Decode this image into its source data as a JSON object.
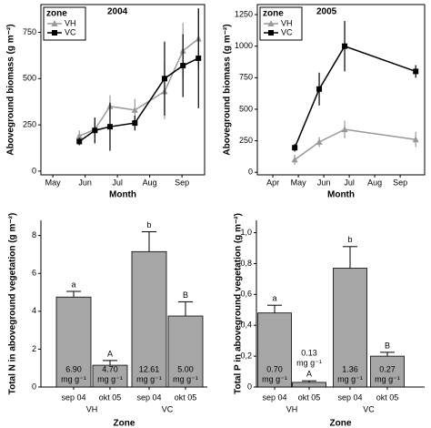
{
  "chart_data": [
    {
      "type": "line",
      "title": "2004",
      "xlabel": "Month",
      "ylabel": "Aboveground biomass (g m⁻²)",
      "legend_title": "zone",
      "legend": "top-left",
      "x": [
        5.82,
        6.3,
        6.77,
        7.54,
        8.46,
        9.03,
        9.51
      ],
      "xlim": [
        4.63,
        9.7
      ],
      "xticks": [
        {
          "value": 5,
          "label": "May"
        },
        {
          "value": 6,
          "label": "Jun"
        },
        {
          "value": 7,
          "label": "Jul"
        },
        {
          "value": 8,
          "label": "Aug"
        },
        {
          "value": 9,
          "label": "Sep"
        }
      ],
      "ylim": [
        -20,
        900
      ],
      "yticks": [
        0,
        250,
        500,
        750
      ],
      "series": [
        {
          "name": "VH",
          "color": "#999999",
          "marker": "triangle",
          "values": [
            190,
            225,
            350,
            330,
            430,
            650,
            715
          ],
          "errors": [
            30,
            40,
            60,
            60,
            150,
            150,
            160
          ]
        },
        {
          "name": "VC",
          "color": "#000000",
          "marker": "square",
          "values": [
            160,
            220,
            240,
            260,
            500,
            570,
            610
          ],
          "errors": [
            20,
            70,
            130,
            40,
            200,
            170,
            270
          ]
        }
      ]
    },
    {
      "type": "line",
      "title": "2005",
      "xlabel": "Month",
      "ylabel": "Aboveground biomass (g m⁻²)",
      "legend_title": "zone",
      "legend": "top-left",
      "x": [
        4.86,
        5.82,
        6.82,
        9.61
      ],
      "xlim": [
        3.39,
        9.96
      ],
      "xticks": [
        {
          "value": 4,
          "label": "Apr"
        },
        {
          "value": 5,
          "label": "May"
        },
        {
          "value": 6,
          "label": "Jun"
        },
        {
          "value": 7,
          "label": "Jul"
        },
        {
          "value": 8,
          "label": "Aug"
        },
        {
          "value": 9,
          "label": "Sep"
        }
      ],
      "ylim": [
        -20,
        1330
      ],
      "yticks": [
        0,
        250,
        500,
        750,
        1000,
        1250
      ],
      "series": [
        {
          "name": "VH",
          "color": "#999999",
          "marker": "triangle",
          "values": [
            100,
            240,
            340,
            260
          ],
          "errors": [
            40,
            40,
            70,
            60
          ]
        },
        {
          "name": "VC",
          "color": "#000000",
          "marker": "square",
          "values": [
            195,
            660,
            1000,
            800
          ],
          "errors": [
            30,
            130,
            200,
            50
          ]
        }
      ]
    },
    {
      "type": "bar",
      "xlabel": "Zone",
      "ylabel": "Total N in aboveground vegetation (g m⁻²)",
      "categories": [
        "sep 04",
        "okt 05",
        "sep 04",
        "okt 05"
      ],
      "groups": [
        "VH",
        "VC"
      ],
      "color": "#a6a6a6",
      "values": [
        4.75,
        1.15,
        7.15,
        3.75
      ],
      "errors": [
        0.3,
        0.25,
        1.05,
        0.75
      ],
      "letters": [
        "a",
        "A",
        "b",
        "B"
      ],
      "notes": [
        [
          "6.90",
          "mg g⁻¹"
        ],
        [
          "4.70",
          "mg g⁻¹"
        ],
        [
          "12.61",
          "mg g⁻¹"
        ],
        [
          "5.00",
          "mg g⁻¹"
        ]
      ],
      "ylim": [
        0,
        8.8
      ],
      "yticks": [
        0,
        2,
        4,
        6,
        8
      ]
    },
    {
      "type": "bar",
      "xlabel": "Zone",
      "ylabel": "Total P in aboveground vegetation (g m⁻²)",
      "categories": [
        "sep 04",
        "okt 05",
        "sep 04",
        "okt 05"
      ],
      "groups": [
        "VH",
        "VC"
      ],
      "color": "#a6a6a6",
      "values": [
        0.48,
        0.03,
        0.77,
        0.2
      ],
      "errors": [
        0.05,
        0.01,
        0.14,
        0.025
      ],
      "letters": [
        "a",
        "A",
        "b",
        "B"
      ],
      "notes": [
        [
          "0.70",
          "mg g⁻¹"
        ],
        [
          "0.13",
          "mg g⁻¹"
        ],
        [
          "1.36",
          "mg g⁻¹"
        ],
        [
          "0.27",
          "mg g⁻¹"
        ]
      ],
      "ylim": [
        0,
        1.08
      ],
      "yticks": [
        0,
        {
          "value": 0.2,
          "label": "0,2"
        },
        {
          "value": 0.4,
          "label": "0,4"
        },
        {
          "value": 0.6,
          "label": "0,6"
        },
        {
          "value": 0.8,
          "label": "0,8"
        },
        {
          "value": 1,
          "label": "1,0"
        }
      ]
    }
  ]
}
